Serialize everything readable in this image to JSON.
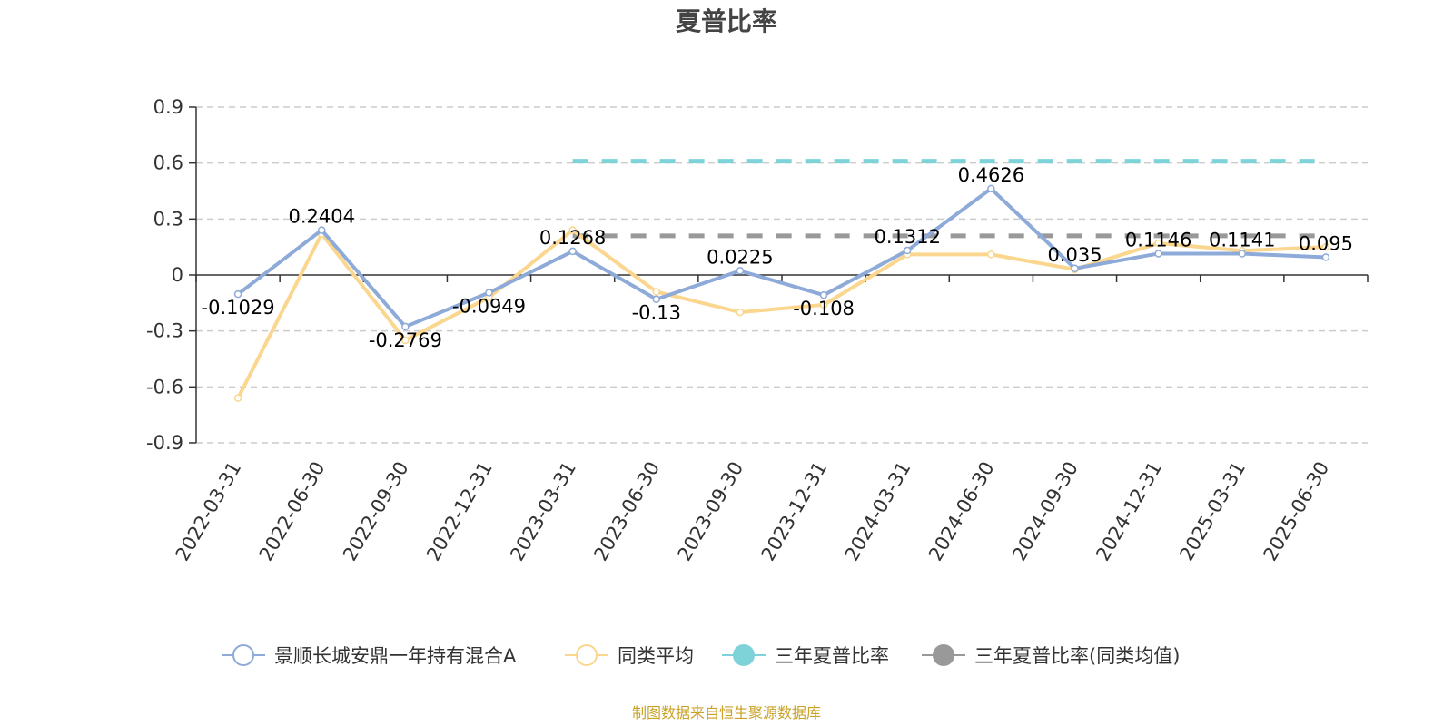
{
  "chart_data": {
    "type": "line",
    "title": "夏普比率",
    "categories": [
      "2022-03-31",
      "2022-06-30",
      "2022-09-30",
      "2022-12-31",
      "2023-03-31",
      "2023-06-30",
      "2023-09-30",
      "2023-12-31",
      "2024-03-31",
      "2024-06-30",
      "2024-09-30",
      "2024-12-31",
      "2025-03-31",
      "2025-06-30"
    ],
    "ylim": [
      -0.9,
      0.9
    ],
    "yticks": [
      "0.9",
      "0.6",
      "0.3",
      "0",
      "-0.3",
      "-0.6",
      "-0.9"
    ],
    "grid": true,
    "legend_position": "bottom",
    "series": [
      {
        "name": "景顺长城安鼎一年持有混合A",
        "color": "#8eaad8",
        "values": [
          -0.1029,
          0.2404,
          -0.2769,
          -0.0949,
          0.1268,
          -0.13,
          0.0225,
          -0.108,
          0.1312,
          0.4626,
          0.035,
          0.1146,
          0.1141,
          0.095
        ],
        "labels": [
          "-0.1029",
          "0.2404",
          "-0.2769",
          "-0.0949",
          "0.1268",
          "-0.13",
          "0.0225",
          "-0.108",
          "0.1312",
          "0.4626",
          "0.035",
          "0.1146",
          "0.1141",
          "0.095"
        ]
      },
      {
        "name": "同类平均",
        "color": "#fbd68e",
        "values": [
          -0.66,
          0.22,
          -0.35,
          -0.12,
          0.24,
          -0.09,
          -0.2,
          -0.16,
          0.11,
          0.11,
          0.03,
          0.17,
          0.13,
          0.15
        ]
      },
      {
        "name": "三年夏普比率",
        "color": "#7dd3d8",
        "type": "dashed-reference",
        "value": 0.61,
        "from_category": "2023-03-31",
        "to_category": "2025-06-30"
      },
      {
        "name": "三年夏普比率(同类均值)",
        "color": "#999999",
        "type": "dashed-reference",
        "value": 0.21,
        "from_category": "2023-03-31",
        "to_category": "2025-06-30"
      }
    ]
  },
  "source": "制图数据来自恒生聚源数据库"
}
